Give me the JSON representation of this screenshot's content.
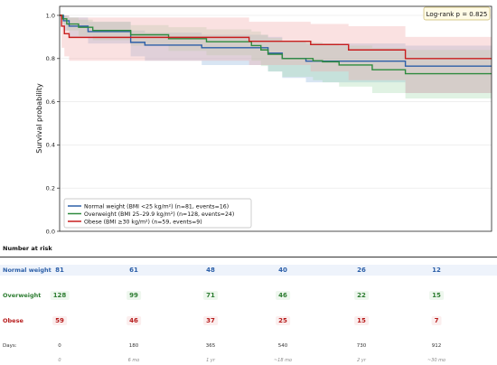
{
  "chart_data": {
    "type": "line",
    "subtype": "kaplan-meier-step",
    "ylabel": "Survival probability",
    "xlabel": "",
    "ylim": [
      0.0,
      1.0
    ],
    "xlim": [
      0,
      912
    ],
    "yticks": [
      "0.0",
      "0.2",
      "0.4",
      "0.6",
      "0.8",
      "1.0"
    ],
    "grid": true,
    "legend_position": "bottom-left",
    "annotation": "Log-rank p = 0.825",
    "series": [
      {
        "name": "Normal weight (BMI <25 kg/m²) (n=81, events=16)",
        "color": "#2c5fa8",
        "band_color": "#8fb4dc",
        "steps": [
          [
            0,
            1.0
          ],
          [
            8,
            0.975
          ],
          [
            20,
            0.95
          ],
          [
            60,
            0.925
          ],
          [
            150,
            0.875
          ],
          [
            180,
            0.862
          ],
          [
            300,
            0.85
          ],
          [
            440,
            0.825
          ],
          [
            470,
            0.8
          ],
          [
            520,
            0.788
          ],
          [
            730,
            0.765
          ],
          [
            912,
            0.765
          ]
        ],
        "ci_lower": [
          [
            0,
            1.0
          ],
          [
            8,
            0.93
          ],
          [
            20,
            0.9
          ],
          [
            60,
            0.87
          ],
          [
            150,
            0.81
          ],
          [
            180,
            0.79
          ],
          [
            300,
            0.77
          ],
          [
            440,
            0.74
          ],
          [
            470,
            0.71
          ],
          [
            520,
            0.69
          ],
          [
            730,
            0.64
          ],
          [
            912,
            0.64
          ]
        ],
        "ci_upper": [
          [
            0,
            1.0
          ],
          [
            8,
            1.0
          ],
          [
            20,
            0.99
          ],
          [
            60,
            0.97
          ],
          [
            150,
            0.93
          ],
          [
            180,
            0.92
          ],
          [
            300,
            0.91
          ],
          [
            440,
            0.9
          ],
          [
            470,
            0.88
          ],
          [
            520,
            0.87
          ],
          [
            730,
            0.86
          ],
          [
            912,
            0.86
          ]
        ]
      },
      {
        "name": "Overweight (BMI 25–29.9 kg/m²) (n=128, events=24)",
        "color": "#2e8b3e",
        "band_color": "#a6d9b0",
        "steps": [
          [
            0,
            1.0
          ],
          [
            6,
            0.984
          ],
          [
            15,
            0.96
          ],
          [
            40,
            0.945
          ],
          [
            70,
            0.93
          ],
          [
            150,
            0.91
          ],
          [
            230,
            0.892
          ],
          [
            310,
            0.878
          ],
          [
            405,
            0.86
          ],
          [
            425,
            0.84
          ],
          [
            440,
            0.82
          ],
          [
            470,
            0.8
          ],
          [
            535,
            0.79
          ],
          [
            555,
            0.785
          ],
          [
            590,
            0.77
          ],
          [
            660,
            0.748
          ],
          [
            730,
            0.73
          ],
          [
            912,
            0.73
          ]
        ],
        "ci_lower": [
          [
            0,
            1.0
          ],
          [
            6,
            0.96
          ],
          [
            15,
            0.93
          ],
          [
            40,
            0.905
          ],
          [
            70,
            0.885
          ],
          [
            150,
            0.86
          ],
          [
            230,
            0.835
          ],
          [
            310,
            0.815
          ],
          [
            405,
            0.79
          ],
          [
            425,
            0.765
          ],
          [
            440,
            0.74
          ],
          [
            470,
            0.715
          ],
          [
            535,
            0.7
          ],
          [
            555,
            0.69
          ],
          [
            590,
            0.67
          ],
          [
            660,
            0.64
          ],
          [
            730,
            0.615
          ],
          [
            912,
            0.615
          ]
        ],
        "ci_upper": [
          [
            0,
            1.0
          ],
          [
            6,
            1.0
          ],
          [
            15,
            0.99
          ],
          [
            40,
            0.98
          ],
          [
            70,
            0.97
          ],
          [
            150,
            0.955
          ],
          [
            230,
            0.945
          ],
          [
            310,
            0.935
          ],
          [
            405,
            0.925
          ],
          [
            425,
            0.91
          ],
          [
            440,
            0.895
          ],
          [
            470,
            0.88
          ],
          [
            535,
            0.875
          ],
          [
            555,
            0.87
          ],
          [
            590,
            0.86
          ],
          [
            660,
            0.85
          ],
          [
            730,
            0.84
          ],
          [
            912,
            0.84
          ]
        ]
      },
      {
        "name": "Obese (BMI ≥30 kg/m²) (n=59, events=9)",
        "color": "#c81e1e",
        "band_color": "#f2aaaa",
        "steps": [
          [
            0,
            1.0
          ],
          [
            4,
            0.95
          ],
          [
            10,
            0.915
          ],
          [
            20,
            0.898
          ],
          [
            400,
            0.88
          ],
          [
            530,
            0.865
          ],
          [
            610,
            0.84
          ],
          [
            730,
            0.8
          ],
          [
            912,
            0.8
          ]
        ],
        "ci_lower": [
          [
            0,
            1.0
          ],
          [
            4,
            0.85
          ],
          [
            10,
            0.81
          ],
          [
            20,
            0.79
          ],
          [
            400,
            0.77
          ],
          [
            530,
            0.74
          ],
          [
            610,
            0.7
          ],
          [
            730,
            0.64
          ],
          [
            912,
            0.64
          ]
        ],
        "ci_upper": [
          [
            0,
            1.0
          ],
          [
            4,
            1.0
          ],
          [
            10,
            1.0
          ],
          [
            20,
            0.99
          ],
          [
            400,
            0.97
          ],
          [
            530,
            0.96
          ],
          [
            610,
            0.95
          ],
          [
            730,
            0.9
          ],
          [
            912,
            0.9
          ]
        ]
      }
    ]
  },
  "risk_table": {
    "title": "Number at risk",
    "days_label": "Days:",
    "days": [
      "0",
      "180",
      "365",
      "540",
      "730",
      "912"
    ],
    "sublabels": [
      "0",
      "6 mo",
      "1 yr",
      "~18 mo",
      "2 yr",
      "~30 mo"
    ],
    "rows": [
      {
        "label": "Normal weight",
        "color": "#2c5fa8",
        "bg": "#eef3fb",
        "counts": [
          "81",
          "61",
          "48",
          "40",
          "26",
          "12"
        ]
      },
      {
        "label": "Overweight",
        "color": "#2e7d32",
        "bg": "#eef7ee",
        "counts": [
          "128",
          "99",
          "71",
          "46",
          "22",
          "15"
        ]
      },
      {
        "label": "Obese",
        "color": "#b71c1c",
        "bg": "#fbeeee",
        "counts": [
          "59",
          "46",
          "37",
          "25",
          "15",
          "7"
        ]
      }
    ]
  }
}
